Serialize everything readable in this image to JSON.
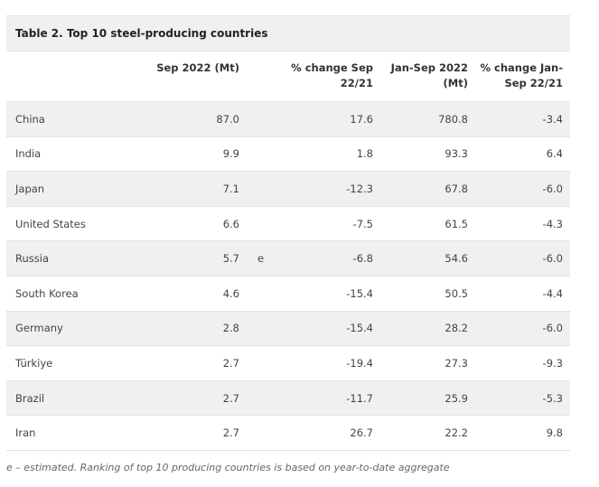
{
  "table": {
    "title": "Table 2. Top 10 steel-producing countries",
    "headers": {
      "sep": "Sep 2022 (Mt)",
      "chg": "% change Sep\n22/21",
      "ytd": "Jan-Sep 2022\n(Mt)",
      "ytd_chg": "% change Jan-\nSep 22/21"
    },
    "rows": [
      {
        "country": "China",
        "sep": "87.0",
        "flag": "",
        "chg": "17.6",
        "ytd": "780.8",
        "ytd_chg": "-3.4"
      },
      {
        "country": "India",
        "sep": "9.9",
        "flag": "",
        "chg": "1.8",
        "ytd": "93.3",
        "ytd_chg": "6.4"
      },
      {
        "country": "Japan",
        "sep": "7.1",
        "flag": "",
        "chg": "-12.3",
        "ytd": "67.8",
        "ytd_chg": "-6.0"
      },
      {
        "country": "United States",
        "sep": "6.6",
        "flag": "",
        "chg": "-7.5",
        "ytd": "61.5",
        "ytd_chg": "-4.3"
      },
      {
        "country": "Russia",
        "sep": "5.7",
        "flag": "e",
        "chg": "-6.8",
        "ytd": "54.6",
        "ytd_chg": "-6.0"
      },
      {
        "country": "South Korea",
        "sep": "4.6",
        "flag": "",
        "chg": "-15.4",
        "ytd": "50.5",
        "ytd_chg": "-4.4"
      },
      {
        "country": "Germany",
        "sep": "2.8",
        "flag": "",
        "chg": "-15.4",
        "ytd": "28.2",
        "ytd_chg": "-6.0"
      },
      {
        "country": "Türkiye",
        "sep": "2.7",
        "flag": "",
        "chg": "-19.4",
        "ytd": "27.3",
        "ytd_chg": "-9.3"
      },
      {
        "country": "Brazil",
        "sep": "2.7",
        "flag": "",
        "chg": "-11.7",
        "ytd": "25.9",
        "ytd_chg": "-5.3"
      },
      {
        "country": "Iran",
        "sep": "2.7",
        "flag": "",
        "chg": "26.7",
        "ytd": "22.2",
        "ytd_chg": "9.8"
      }
    ]
  },
  "footnote": "e – estimated. Ranking of top 10 producing countries is based on year-to-date aggregate"
}
